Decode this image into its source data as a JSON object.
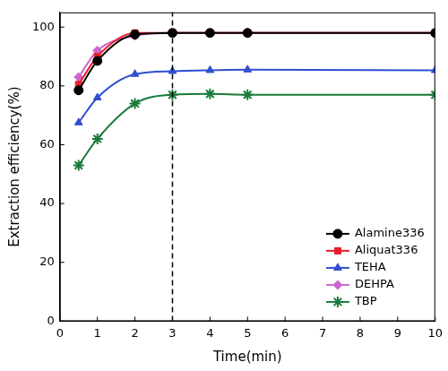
{
  "chart_data": {
    "type": "line",
    "x_label": "Time(min)",
    "y_label": "Extraction efficiency(%)",
    "x": [
      0.5,
      1,
      2,
      3,
      4,
      5,
      10
    ],
    "series": [
      {
        "name": "Alamine336",
        "color": "#000000",
        "marker": "circle",
        "line_style": "solid",
        "values": [
          78.5,
          88.5,
          97.5,
          98,
          98,
          98,
          98
        ]
      },
      {
        "name": "Aliquat336",
        "color": "#e8202a",
        "marker": "square",
        "line_style": "solid",
        "values": [
          80.5,
          90,
          98,
          98,
          98,
          98,
          98
        ]
      },
      {
        "name": "TEHA",
        "color": "#2f4fd0",
        "marker": "triangle",
        "line_style": "solid",
        "values": [
          67.5,
          76,
          84,
          85,
          85.3,
          85.5,
          85.3
        ]
      },
      {
        "name": "DEHPA",
        "color": "#cc66cc",
        "marker": "diamond",
        "line_style": "solid",
        "values": [
          83,
          92,
          97,
          98,
          98,
          98,
          98
        ]
      },
      {
        "name": "TBP",
        "color": "#1a7a3a",
        "marker": "star",
        "line_style": "solid",
        "values": [
          53,
          62,
          74,
          77,
          77.3,
          77,
          77
        ]
      }
    ],
    "xlim": [
      0,
      10
    ],
    "xticks": [
      0,
      1,
      2,
      3,
      4,
      5,
      6,
      7,
      8,
      9,
      10
    ],
    "ylim": [
      0,
      105
    ],
    "yticks": [
      0,
      20,
      40,
      60,
      80,
      100
    ],
    "vline": {
      "x": 3,
      "line_style": "dashed"
    },
    "grid": false,
    "legend": "bottom right"
  }
}
